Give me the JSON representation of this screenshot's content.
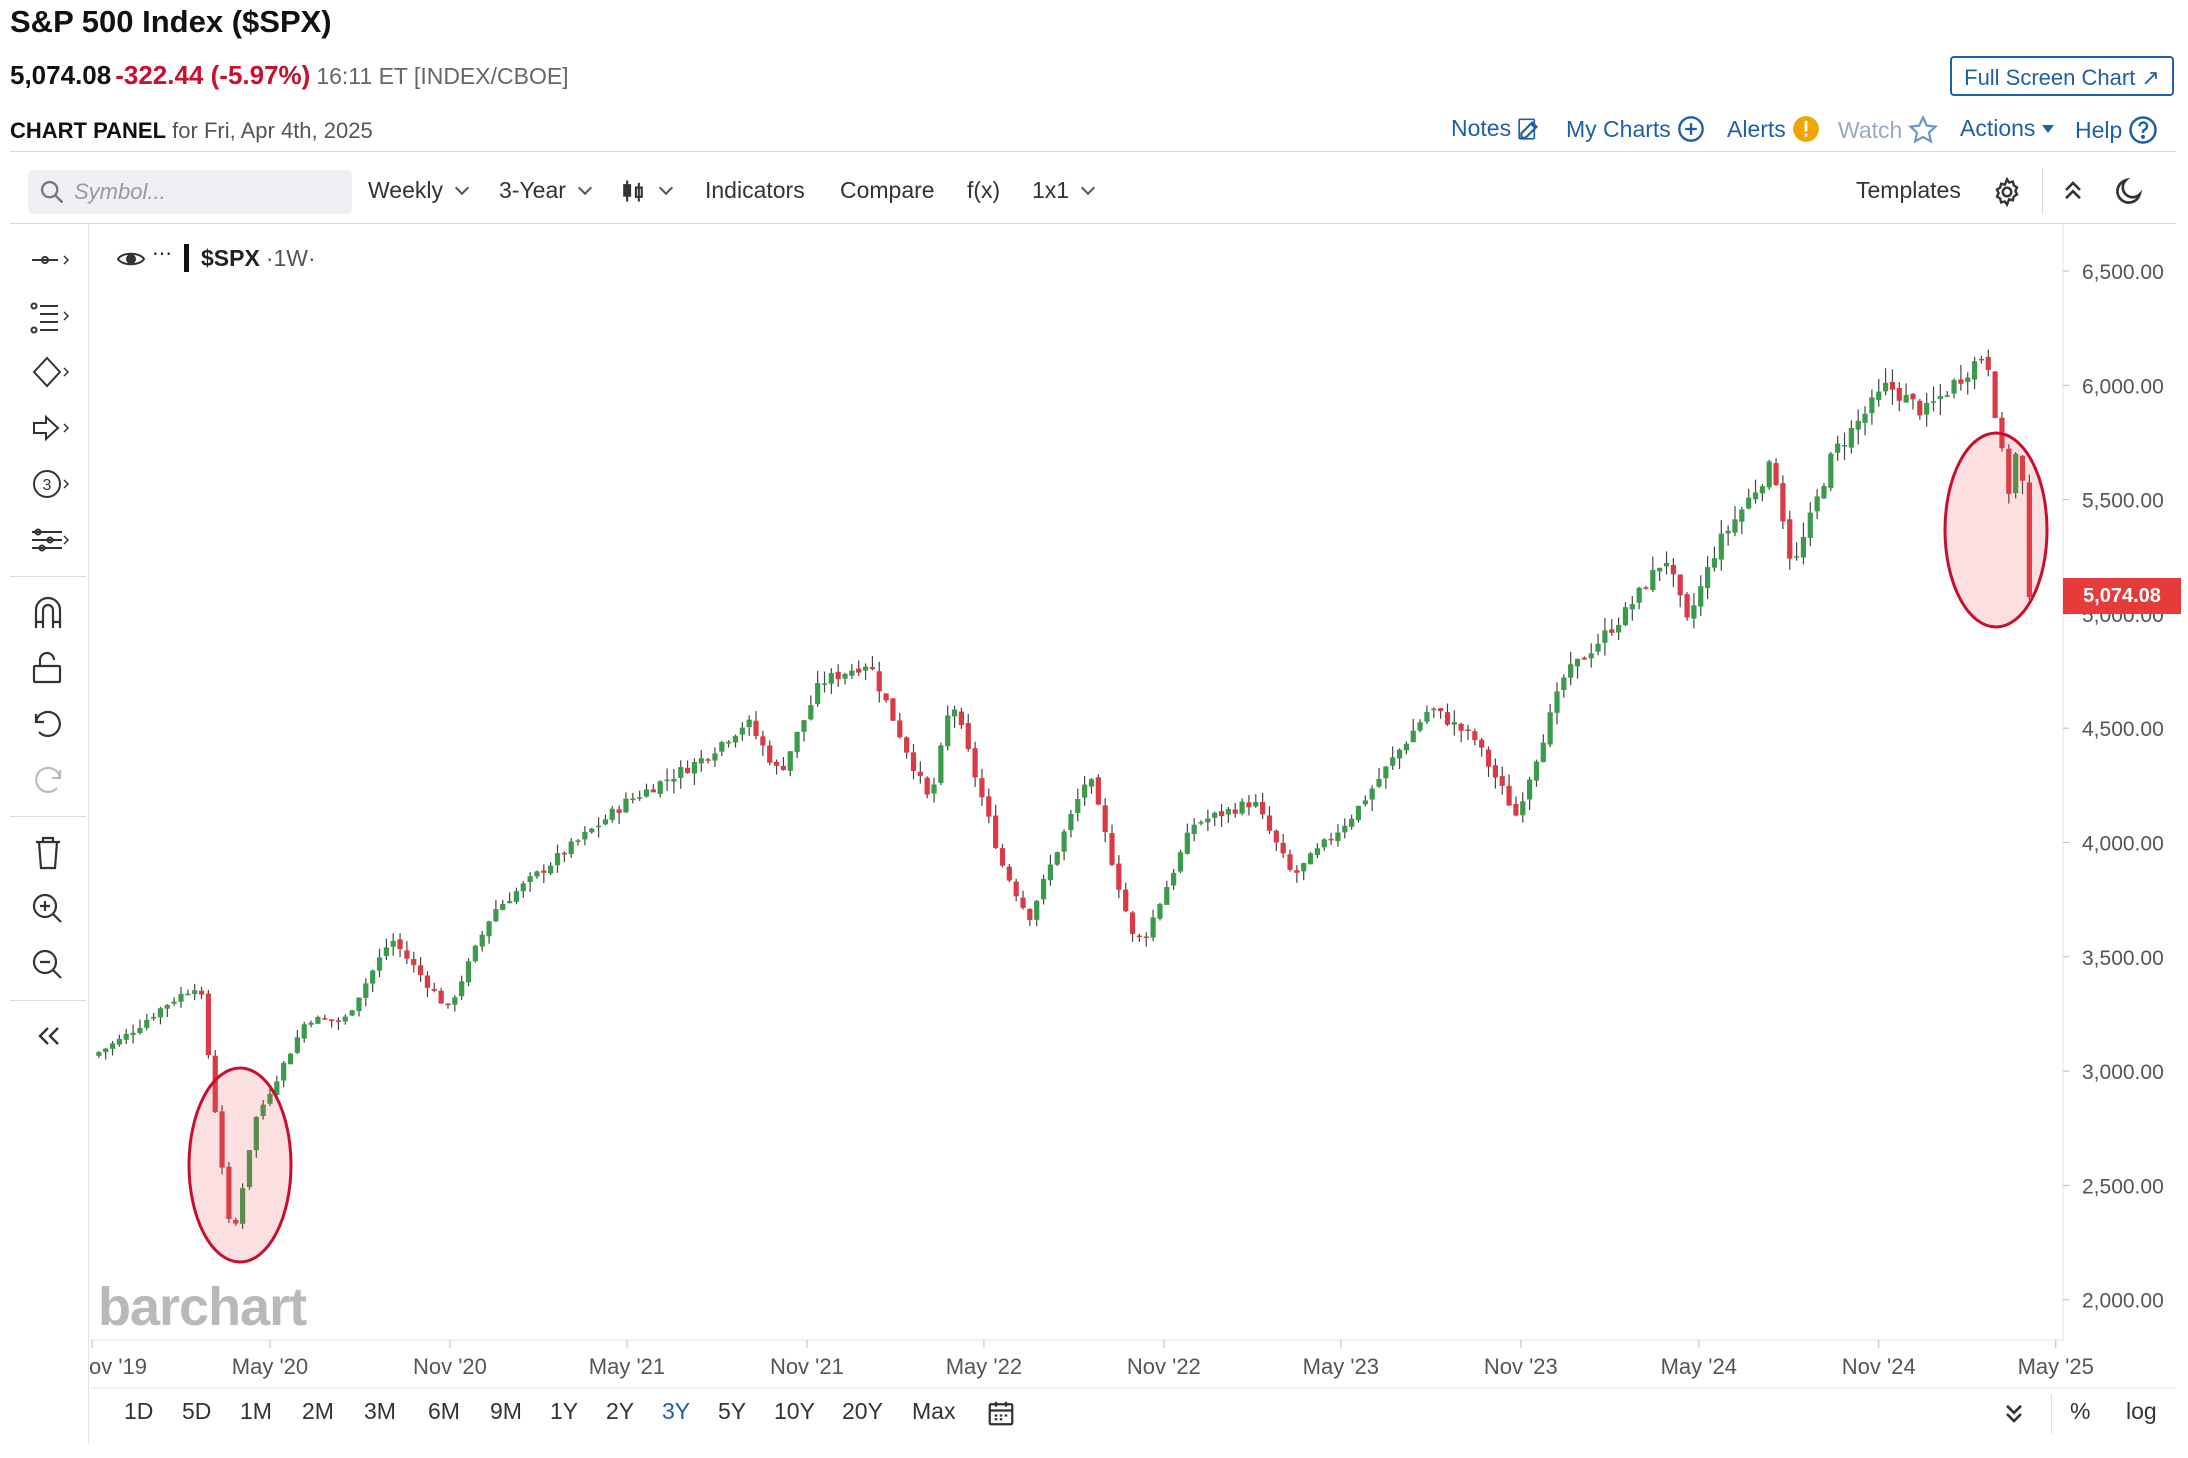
{
  "header": {
    "title": "S&P 500 Index ($SPX)",
    "price": "5,074.08",
    "change": "-322.44 (-5.97%)",
    "time_source": "16:11 ET [INDEX/CBOE]",
    "full_screen_label": "Full Screen Chart ↗",
    "panel_label": "CHART PANEL",
    "panel_date": "for Fri, Apr 4th, 2025"
  },
  "links": {
    "notes": "Notes",
    "my_charts": "My Charts",
    "alerts": "Alerts",
    "watch": "Watch",
    "actions": "Actions",
    "help": "Help"
  },
  "toolbar": {
    "search_placeholder": "Symbol...",
    "interval": "Weekly",
    "range": "3-Year",
    "indicators": "Indicators",
    "compare": "Compare",
    "fx": "f(x)",
    "layout": "1x1",
    "templates": "Templates"
  },
  "legend": {
    "symbol": "$SPX",
    "interval": "·1W·"
  },
  "watermark": "barchart",
  "range_buttons": [
    "1D",
    "5D",
    "1M",
    "2M",
    "3M",
    "6M",
    "9M",
    "1Y",
    "2Y",
    "3Y",
    "5Y",
    "10Y",
    "20Y",
    "Max"
  ],
  "active_range": "3Y",
  "bottom_right": {
    "percent": "%",
    "log": "log"
  },
  "colors": {
    "up": "#3a9c4a",
    "down": "#d93a44",
    "link": "#1f5fa8",
    "badge": "#e63b3b",
    "highlight": "#c8102e"
  },
  "chart_data": {
    "type": "candlestick",
    "title": "S&P 500 Index ($SPX)",
    "symbol": "$SPX",
    "interval": "Weekly",
    "last_price": "5,074.08",
    "x_tick_labels": [
      "ov '19",
      "May '20",
      "Nov '20",
      "May '21",
      "Nov '21",
      "May '22",
      "Nov '22",
      "May '23",
      "Nov '23",
      "May '24",
      "Nov '24",
      "May '25"
    ],
    "y_tick_labels": [
      "6,500.00",
      "6,000.00",
      "5,500.00",
      "5,000.00",
      "4,500.00",
      "4,000.00",
      "3,500.00",
      "3,000.00",
      "2,500.00",
      "2,000.00"
    ],
    "ylim": [
      2000,
      6500
    ],
    "grid": false,
    "series": [
      {
        "name": "$SPX",
        "x": [
          "2019-11-01",
          "2019-12-01",
          "2020-01-15",
          "2020-02-19",
          "2020-03-23",
          "2020-04-15",
          "2020-06-08",
          "2020-07-15",
          "2020-09-02",
          "2020-10-30",
          "2020-12-15",
          "2021-02-15",
          "2021-05-01",
          "2021-07-15",
          "2021-09-01",
          "2021-10-04",
          "2021-11-15",
          "2022-01-03",
          "2022-03-07",
          "2022-03-29",
          "2022-05-20",
          "2022-06-16",
          "2022-08-16",
          "2022-09-30",
          "2022-10-12",
          "2022-12-01",
          "2023-02-01",
          "2023-03-13",
          "2023-05-15",
          "2023-07-31",
          "2023-09-15",
          "2023-10-27",
          "2023-12-15",
          "2024-02-15",
          "2024-03-28",
          "2024-04-19",
          "2024-05-20",
          "2024-07-16",
          "2024-08-05",
          "2024-09-15",
          "2024-11-10",
          "2024-12-18",
          "2025-01-15",
          "2025-02-19",
          "2025-03-13",
          "2025-03-25",
          "2025-04-04"
        ],
        "close": [
          3066,
          3140,
          3290,
          3386,
          2237,
          2780,
          3230,
          3215,
          3580,
          3270,
          3700,
          3920,
          4180,
          4360,
          4530,
          4300,
          4700,
          4790,
          4170,
          4630,
          3900,
          3670,
          4300,
          3590,
          3580,
          4080,
          4180,
          3850,
          4130,
          4590,
          4450,
          4120,
          4720,
          5000,
          5250,
          4960,
          5300,
          5660,
          5190,
          5700,
          6000,
          5880,
          6000,
          6150,
          5520,
          5780,
          5074
        ]
      }
    ],
    "annotations": [
      "circle: March 2020 crash",
      "circle: April 2025 drop"
    ]
  }
}
